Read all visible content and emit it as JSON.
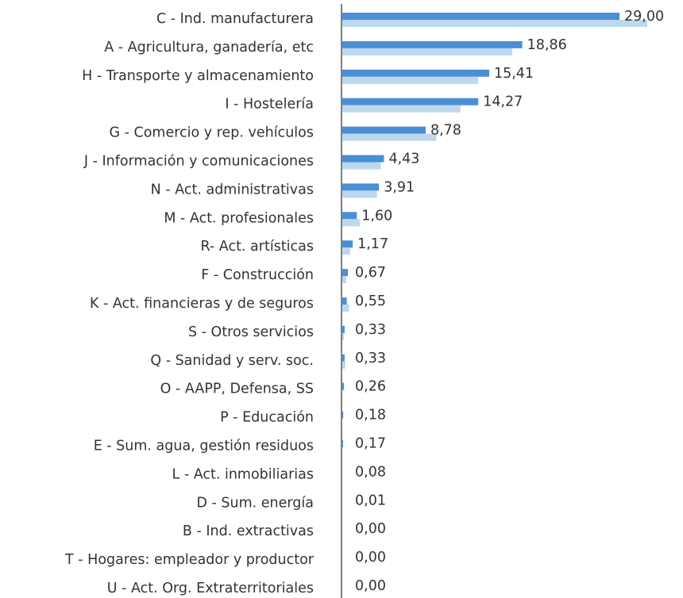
{
  "chart_data": {
    "type": "bar",
    "orientation": "horizontal",
    "categories": [
      "C - Ind. manufacturera",
      "A - Agricultura, ganadería, etc",
      "H - Transporte y almacenamiento",
      "I - Hostelería",
      "G - Comercio y rep. vehículos",
      "J - Información y comunicaciones",
      "N - Act. administrativas",
      "M - Act. profesionales",
      "R-  Act. artísticas",
      "F - Construcción",
      "K - Act. financieras y de seguros",
      "S - Otros servicios",
      "Q - Sanidad y serv. soc.",
      "O - AAPP, Defensa, SS",
      "P - Educación",
      "E - Sum. agua, gestión residuos",
      "L - Act. inmobiliarias",
      "D - Sum. energía ",
      "B - Ind. extractivas",
      "T - Hogares: empleador y productor",
      "U - Act. Org. Extraterritoriales"
    ],
    "series": [
      {
        "color": "#4a8fd6",
        "values": [
          29.0,
          18.86,
          15.41,
          14.27,
          8.78,
          4.43,
          3.91,
          1.6,
          1.17,
          0.67,
          0.55,
          0.33,
          0.33,
          0.26,
          0.18,
          0.17,
          0.08,
          0.01,
          0.0,
          0.0,
          0.0
        ],
        "value_labels": [
          "29,00",
          "18,86",
          "15,41",
          "14,27",
          "8,78",
          "4,43",
          "3,91",
          "1,60",
          "1,17",
          "0,67",
          "0,55",
          "0,33",
          "0,33",
          "0,26",
          "0,18",
          "0,17",
          "0,08",
          "0,01",
          "0,00",
          "0,00",
          "0,00"
        ]
      },
      {
        "color": "#bdd7ee",
        "values": [
          31.9,
          17.8,
          14.25,
          12.4,
          9.9,
          4.1,
          3.7,
          1.9,
          0.9,
          0.5,
          0.8,
          0.25,
          0.4,
          0.1,
          0,
          0,
          0,
          0,
          0,
          0,
          0
        ]
      }
    ]
  }
}
